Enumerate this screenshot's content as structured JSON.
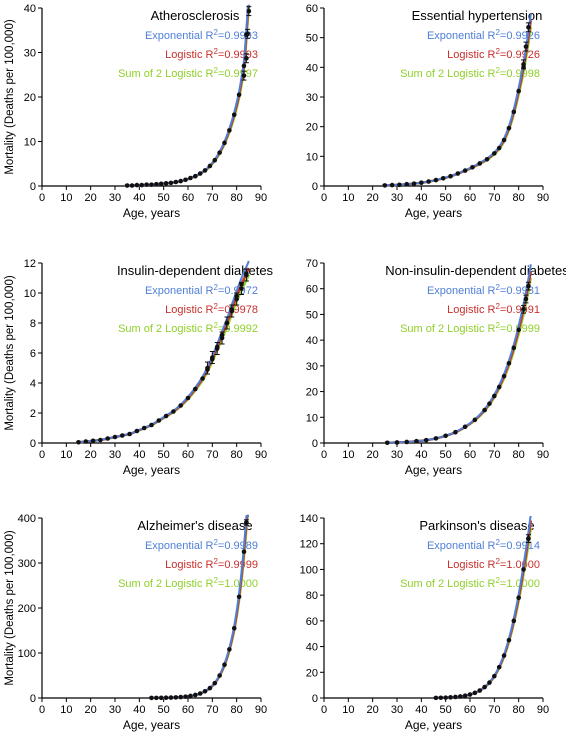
{
  "colors": {
    "exponential": "#4f7fd6",
    "logistic": "#c8302c",
    "sum_logistic": "#8fcf2a",
    "points": "#111111",
    "axis": "#000000"
  },
  "chart_data": [
    {
      "type": "scatter",
      "title": "Atherosclerosis",
      "xlabel": "Age, years",
      "ylabel": "Mortality (Deaths per 100,000)",
      "xlim": [
        0,
        90
      ],
      "ylim": [
        0,
        40
      ],
      "xticks": [
        0,
        10,
        20,
        30,
        40,
        50,
        60,
        70,
        80,
        90
      ],
      "yticks": [
        0,
        10,
        20,
        30,
        40
      ],
      "fit_labels": [
        {
          "series": "exponential",
          "name": "Exponential R",
          "exp": "2",
          "value": "=0.9993"
        },
        {
          "series": "logistic",
          "name": "Logistic R",
          "exp": "2",
          "value": "=0.9993"
        },
        {
          "series": "sum_logistic",
          "name": "Sum of 2 Logistic R",
          "exp": "2",
          "value": "=0.9997"
        }
      ],
      "x": [
        35,
        37,
        39,
        41,
        43,
        45,
        47,
        49,
        51,
        53,
        55,
        57,
        59,
        61,
        63,
        65,
        67,
        69,
        71,
        73,
        75,
        77,
        79,
        81,
        83,
        84
      ],
      "y": [
        0.1,
        0.1,
        0.2,
        0.2,
        0.3,
        0.3,
        0.4,
        0.5,
        0.6,
        0.7,
        0.9,
        1.1,
        1.4,
        1.8,
        2.2,
        2.8,
        3.5,
        4.5,
        5.8,
        7.5,
        9.7,
        12.5,
        16.0,
        20.5,
        27.0,
        34.0
      ],
      "error_points": [
        [
          83,
          24.8,
          1.0
        ],
        [
          84,
          28.7,
          1.0
        ],
        [
          84.5,
          34.2,
          1.0
        ],
        [
          85,
          39.3,
          1.0
        ]
      ],
      "curve_range": [
        34,
        85.5
      ],
      "series_order": [
        "sum_logistic",
        "logistic",
        "exponential"
      ]
    },
    {
      "type": "scatter",
      "title": "Essential hypertension",
      "xlabel": "Age, years",
      "ylabel": "",
      "xlim": [
        0,
        90
      ],
      "ylim": [
        0,
        60
      ],
      "xticks": [
        0,
        10,
        20,
        30,
        40,
        50,
        60,
        70,
        80,
        90
      ],
      "yticks": [
        0,
        10,
        20,
        30,
        40,
        50,
        60
      ],
      "fit_labels": [
        {
          "series": "exponential",
          "name": "Exponential R",
          "exp": "2",
          "value": "=0.9926"
        },
        {
          "series": "logistic",
          "name": "Logistic R",
          "exp": "2",
          "value": "=0.9926"
        },
        {
          "series": "sum_logistic",
          "name": "Sum of 2 Logistic R",
          "exp": "2",
          "value": "=0.9998"
        }
      ],
      "x": [
        25,
        28,
        31,
        34,
        37,
        40,
        43,
        46,
        49,
        52,
        55,
        58,
        61,
        64,
        67,
        70,
        72,
        74,
        76,
        78,
        80,
        82
      ],
      "y": [
        0.2,
        0.3,
        0.4,
        0.6,
        0.8,
        1.1,
        1.5,
        2.0,
        2.6,
        3.3,
        4.2,
        5.2,
        6.3,
        7.6,
        9.0,
        11.0,
        12.8,
        15.5,
        19.5,
        25.0,
        32.0,
        40.0
      ],
      "error_points": [
        [
          82,
          41.0,
          1.5
        ],
        [
          83,
          47.0,
          1.5
        ],
        [
          84,
          53.5,
          1.5
        ]
      ],
      "curve_range": [
        24,
        85
      ],
      "series_order": [
        "sum_logistic",
        "logistic",
        "exponential"
      ]
    },
    {
      "type": "scatter",
      "title": "Insulin-dependent diabetes",
      "xlabel": "Age, years",
      "ylabel": "Mortality (Deaths per 100,000)",
      "xlim": [
        0,
        90
      ],
      "ylim": [
        0,
        12
      ],
      "xticks": [
        0,
        10,
        20,
        30,
        40,
        50,
        60,
        70,
        80,
        90
      ],
      "yticks": [
        0,
        2,
        4,
        6,
        8,
        10,
        12
      ],
      "fit_labels": [
        {
          "series": "exponential",
          "name": "Exponential R",
          "exp": "2",
          "value": "=0.9972"
        },
        {
          "series": "logistic",
          "name": "Logistic R",
          "exp": "2",
          "value": "=0.9978"
        },
        {
          "series": "sum_logistic",
          "name": "Sum of 2 Logistic R",
          "exp": "2",
          "value": "=0.9992"
        }
      ],
      "x": [
        15,
        18,
        21,
        24,
        27,
        30,
        33,
        36,
        39,
        42,
        45,
        48,
        51,
        54,
        57,
        60,
        63,
        66,
        68,
        70,
        72,
        74,
        76,
        78,
        80,
        82,
        84
      ],
      "y": [
        0.05,
        0.1,
        0.15,
        0.2,
        0.3,
        0.4,
        0.5,
        0.6,
        0.8,
        1.0,
        1.2,
        1.5,
        1.8,
        2.1,
        2.5,
        3.0,
        3.6,
        4.3,
        4.9,
        5.6,
        6.4,
        7.2,
        8.0,
        8.9,
        9.8,
        10.6,
        11.3
      ],
      "error_points": [
        [
          68,
          5.0,
          0.4
        ],
        [
          70,
          5.7,
          0.4
        ],
        [
          72,
          6.3,
          0.4
        ],
        [
          74,
          7.0,
          0.4
        ],
        [
          76,
          8.0,
          0.4
        ],
        [
          78,
          8.8,
          0.4
        ],
        [
          80,
          9.6,
          0.4
        ],
        [
          82,
          10.3,
          0.4
        ],
        [
          84,
          11.2,
          0.4
        ]
      ],
      "curve_range": [
        14,
        85
      ],
      "series_order": [
        "sum_logistic",
        "logistic",
        "exponential"
      ]
    },
    {
      "type": "scatter",
      "title": "Non-insulin-dependent diabetes",
      "xlabel": "Age, years",
      "ylabel": "",
      "xlim": [
        0,
        90
      ],
      "ylim": [
        0,
        70
      ],
      "xticks": [
        0,
        10,
        20,
        30,
        40,
        50,
        60,
        70,
        80,
        90
      ],
      "yticks": [
        0,
        10,
        20,
        30,
        40,
        50,
        60,
        70
      ],
      "fit_labels": [
        {
          "series": "exponential",
          "name": "Exponential R",
          "exp": "2",
          "value": "=0.9981"
        },
        {
          "series": "logistic",
          "name": "Logistic R",
          "exp": "2",
          "value": "=0.9991"
        },
        {
          "series": "sum_logistic",
          "name": "Sum of 2 Logistic R",
          "exp": "2",
          "value": "=0.9999"
        }
      ],
      "x": [
        26,
        30,
        34,
        38,
        42,
        46,
        50,
        54,
        58,
        62,
        66,
        68,
        70,
        72,
        74,
        76,
        78,
        80,
        82
      ],
      "y": [
        0.1,
        0.2,
        0.4,
        0.7,
        1.1,
        1.8,
        2.8,
        4.2,
        6.3,
        9.0,
        12.8,
        15.3,
        18.3,
        21.8,
        26.0,
        31.0,
        37.0,
        44.0,
        52.0
      ],
      "error_points": [
        [
          82,
          52.0,
          1.5
        ],
        [
          83,
          56.0,
          1.5
        ],
        [
          84,
          61.0,
          1.5
        ]
      ],
      "curve_range": [
        25,
        85
      ],
      "series_order": [
        "sum_logistic",
        "logistic",
        "exponential"
      ]
    },
    {
      "type": "scatter",
      "title": "Alzheimer's disease",
      "xlabel": "Age, years",
      "ylabel": "Mortality (Deaths per 100,000)",
      "xlim": [
        0,
        90
      ],
      "ylim": [
        0,
        400
      ],
      "xticks": [
        0,
        10,
        20,
        30,
        40,
        50,
        60,
        70,
        80,
        90
      ],
      "yticks": [
        0,
        100,
        200,
        300,
        400
      ],
      "fit_labels": [
        {
          "series": "exponential",
          "name": "Exponential R",
          "exp": "2",
          "value": "=0.9989"
        },
        {
          "series": "logistic",
          "name": "Logistic R",
          "exp": "2",
          "value": "=0.9999"
        },
        {
          "series": "sum_logistic",
          "name": "Sum of 2 Logistic R",
          "exp": "2",
          "value": "=1.0000"
        }
      ],
      "x": [
        45,
        47,
        49,
        51,
        53,
        55,
        57,
        59,
        61,
        63,
        65,
        67,
        69,
        71,
        73,
        75,
        77,
        79,
        81,
        83,
        84
      ],
      "y": [
        0.2,
        0.3,
        0.4,
        0.6,
        0.9,
        1.3,
        2.0,
        3.0,
        4.5,
        6.8,
        10,
        15,
        22,
        33,
        50,
        74,
        108,
        155,
        225,
        325,
        390
      ],
      "error_points": [
        [
          84,
          390,
          6
        ]
      ],
      "curve_range": [
        44,
        85
      ],
      "series_order": [
        "sum_logistic",
        "logistic",
        "exponential"
      ]
    },
    {
      "type": "scatter",
      "title": "Parkinson's disease",
      "xlabel": "Age, years",
      "ylabel": "",
      "xlim": [
        0,
        90
      ],
      "ylim": [
        0,
        140
      ],
      "xticks": [
        0,
        10,
        20,
        30,
        40,
        50,
        60,
        70,
        80,
        90
      ],
      "yticks": [
        0,
        20,
        40,
        60,
        80,
        100,
        120,
        140
      ],
      "fit_labels": [
        {
          "series": "exponential",
          "name": "Exponential R",
          "exp": "2",
          "value": "=0.9914"
        },
        {
          "series": "logistic",
          "name": "Logistic R",
          "exp": "2",
          "value": "=1.0000"
        },
        {
          "series": "sum_logistic",
          "name": "Sum of 2 Logistic R",
          "exp": "2",
          "value": "=1.0000"
        }
      ],
      "x": [
        46,
        48,
        50,
        52,
        54,
        56,
        58,
        60,
        62,
        64,
        66,
        68,
        70,
        72,
        74,
        76,
        78,
        80,
        82,
        84
      ],
      "y": [
        0.1,
        0.2,
        0.3,
        0.5,
        0.8,
        1.2,
        1.8,
        2.7,
        4.0,
        5.8,
        8.5,
        12,
        17,
        24,
        33,
        45,
        60,
        78,
        100,
        124
      ],
      "error_points": [
        [
          84,
          124,
          3
        ]
      ],
      "curve_range": [
        45,
        85
      ],
      "series_order": [
        "sum_logistic",
        "logistic",
        "exponential"
      ]
    }
  ]
}
